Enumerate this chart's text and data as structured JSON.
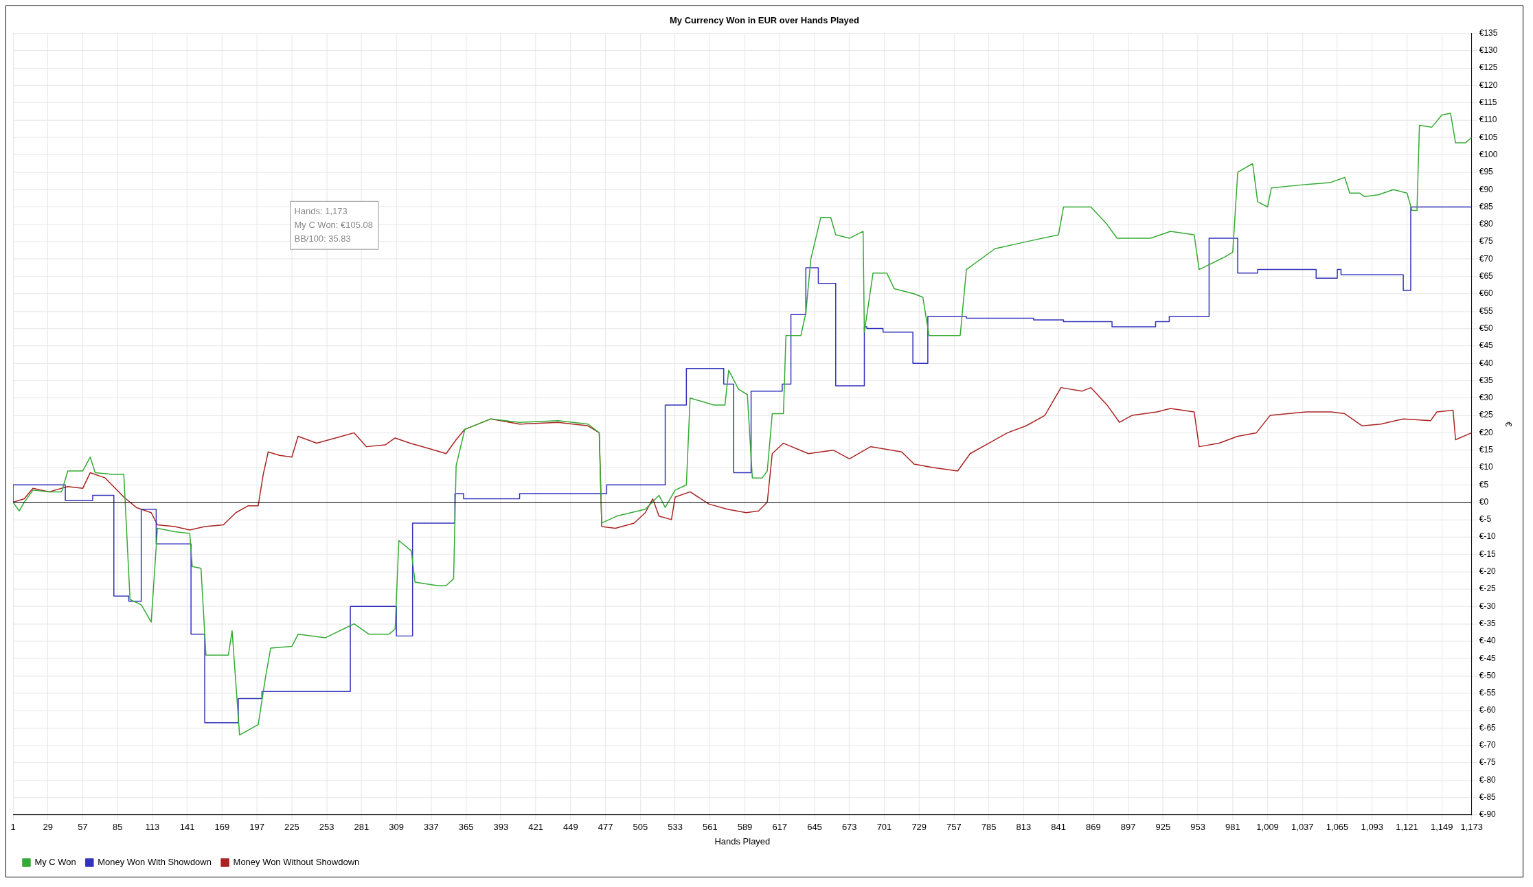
{
  "chart_data": {
    "type": "line",
    "title": "My Currency Won in EUR over Hands Played",
    "xlabel": "Hands Played",
    "ylabel": "€",
    "xlim": [
      1,
      1173
    ],
    "xticks": [
      1,
      29,
      57,
      85,
      113,
      141,
      169,
      197,
      225,
      253,
      281,
      309,
      337,
      365,
      393,
      421,
      449,
      477,
      505,
      533,
      561,
      589,
      617,
      645,
      673,
      701,
      729,
      757,
      785,
      813,
      841,
      869,
      897,
      925,
      953,
      981,
      {
        "value": 1009,
        "label": "1,009"
      },
      {
        "value": 1037,
        "label": "1,037"
      },
      {
        "value": 1065,
        "label": "1,065"
      },
      {
        "value": 1093,
        "label": "1,093"
      },
      {
        "value": 1121,
        "label": "1,121"
      },
      {
        "value": 1149,
        "label": "1,149"
      },
      {
        "value": 1173,
        "label": "1,173"
      }
    ],
    "ylim": [
      -90,
      135
    ],
    "yticks": [
      {
        "value": -90,
        "label": "€-90"
      },
      {
        "value": -85,
        "label": "€-85"
      },
      {
        "value": -80,
        "label": "€-80"
      },
      {
        "value": -75,
        "label": "€-75"
      },
      {
        "value": -70,
        "label": "€-70"
      },
      {
        "value": -65,
        "label": "€-65"
      },
      {
        "value": -60,
        "label": "€-60"
      },
      {
        "value": -55,
        "label": "€-55"
      },
      {
        "value": -50,
        "label": "€-50"
      },
      {
        "value": -45,
        "label": "€-45"
      },
      {
        "value": -40,
        "label": "€-40"
      },
      {
        "value": -35,
        "label": "€-35"
      },
      {
        "value": -30,
        "label": "€-30"
      },
      {
        "value": -25,
        "label": "€-25"
      },
      {
        "value": -20,
        "label": "€-20"
      },
      {
        "value": -15,
        "label": "€-15"
      },
      {
        "value": -10,
        "label": "€-10"
      },
      {
        "value": -5,
        "label": "€-5"
      },
      {
        "value": 0,
        "label": "€0"
      },
      {
        "value": 5,
        "label": "€5"
      },
      {
        "value": 10,
        "label": "€10"
      },
      {
        "value": 15,
        "label": "€15"
      },
      {
        "value": 20,
        "label": "€20"
      },
      {
        "value": 25,
        "label": "€25"
      },
      {
        "value": 30,
        "label": "€30"
      },
      {
        "value": 35,
        "label": "€35"
      },
      {
        "value": 40,
        "label": "€40"
      },
      {
        "value": 45,
        "label": "€45"
      },
      {
        "value": 50,
        "label": "€50"
      },
      {
        "value": 55,
        "label": "€55"
      },
      {
        "value": 60,
        "label": "€60"
      },
      {
        "value": 65,
        "label": "€65"
      },
      {
        "value": 70,
        "label": "€70"
      },
      {
        "value": 75,
        "label": "€75"
      },
      {
        "value": 80,
        "label": "€80"
      },
      {
        "value": 85,
        "label": "€85"
      },
      {
        "value": 90,
        "label": "€90"
      },
      {
        "value": 95,
        "label": "€95"
      },
      {
        "value": 100,
        "label": "€100"
      },
      {
        "value": 105,
        "label": "€105"
      },
      {
        "value": 110,
        "label": "€110"
      },
      {
        "value": 115,
        "label": "€115"
      },
      {
        "value": 120,
        "label": "€120"
      },
      {
        "value": 125,
        "label": "€125"
      },
      {
        "value": 130,
        "label": "€130"
      },
      {
        "value": 135,
        "label": "€135"
      }
    ],
    "grid": true,
    "legend": "bottom left",
    "marker": "none",
    "line_style": "solid",
    "ref_lines": [
      {
        "axis": "y",
        "value": 0,
        "color": "#000000"
      }
    ],
    "annotations": [
      "Hands: 1,173",
      "My C Won: €105.08",
      "BB/100: 35.83"
    ],
    "series": [
      {
        "name": "My C Won",
        "type": "line",
        "color": "#33aa33",
        "x": [
          1,
          6,
          10,
          17,
          30,
          40,
          45,
          57,
          63,
          67,
          81,
          90,
          95,
          104,
          112,
          117,
          131,
          143,
          145,
          152,
          156,
          174,
          177,
          183,
          198,
          204,
          208,
          225,
          230,
          252,
          275,
          287,
          303,
          308,
          311,
          321,
          324,
          342,
          349,
          355,
          357,
          364,
          385,
          408,
          439,
          463,
          472,
          474,
          486,
          509,
          520,
          525,
          533,
          542,
          545,
          564,
          573,
          576,
          584,
          591,
          595,
          603,
          607,
          611,
          620,
          622,
          634,
          638,
          642,
          650,
          658,
          662,
          673,
          684,
          685,
          692,
          703,
          709,
          725,
          732,
          737,
          752,
          762,
          767,
          790,
          815,
          841,
          845,
          867,
          880,
          888,
          915,
          931,
          950,
          954,
          974,
          981,
          985,
          997,
          1001,
          1009,
          1012,
          1040,
          1059,
          1071,
          1075,
          1083,
          1087,
          1098,
          1110,
          1121,
          1125,
          1129,
          1131,
          1141,
          1149,
          1156,
          1160,
          1168,
          1173
        ],
        "values": [
          0,
          -2.5,
          0,
          3.5,
          3,
          3,
          9,
          9,
          13,
          8.5,
          8,
          8,
          -28,
          -29.5,
          -34.5,
          -7.5,
          -8.5,
          -9,
          -18.5,
          -19,
          -44,
          -44,
          -37,
          -67,
          -64,
          -50,
          -42,
          -41.5,
          -38,
          -39,
          -35,
          -38,
          -38,
          -36.5,
          -11,
          -14,
          -23,
          -24,
          -24,
          -22,
          10.5,
          21,
          24,
          23,
          23.5,
          22.5,
          20,
          -6,
          -4,
          -2,
          2,
          -1.5,
          3.5,
          5,
          30,
          28,
          28,
          38,
          32.5,
          31,
          7,
          7,
          9,
          25.5,
          25.5,
          48,
          48,
          54.5,
          70,
          82,
          82,
          77,
          76,
          78,
          49,
          66,
          66,
          61.5,
          60,
          59,
          48,
          48,
          48,
          67,
          73,
          75,
          77,
          85,
          85,
          80,
          76,
          76,
          78,
          77,
          67,
          70.5,
          72,
          95,
          97.5,
          86.5,
          85,
          90.5,
          91.5,
          92,
          93.5,
          89,
          89,
          88,
          88.5,
          90,
          89,
          84,
          84,
          108.5,
          108,
          111.5,
          112,
          103.5,
          103.5,
          105
        ]
      },
      {
        "name": "Money Won With Showdown",
        "type": "step",
        "color": "#3333bb",
        "x": [
          1,
          43,
          65,
          82,
          94,
          104,
          116,
          144,
          155,
          182,
          201,
          272,
          309,
          322,
          356,
          363,
          408,
          478,
          525,
          542,
          572,
          580,
          594,
          619,
          626,
          638,
          648,
          662,
          685,
          687,
          700,
          724,
          736,
          767,
          821,
          845,
          884,
          919,
          930,
          962,
          985,
          1001,
          1048,
          1065,
          1068,
          1118,
          1124,
          1131,
          1173
        ],
        "values": [
          0,
          5,
          0.5,
          2,
          -27,
          -28.5,
          -2,
          -12,
          -38,
          -63.5,
          -56.5,
          -54.5,
          -30,
          -38.5,
          -6,
          2.5,
          1,
          2.5,
          5,
          28,
          38.5,
          34,
          8.5,
          32,
          34,
          54,
          67.5,
          63,
          33.5,
          50.5,
          50,
          49,
          40,
          53.5,
          53,
          52.5,
          52,
          50.5,
          52,
          53.5,
          76,
          66,
          67,
          64.5,
          67,
          65.5,
          61,
          85,
          85
        ]
      },
      {
        "name": "Money Won Without Showdown",
        "type": "line",
        "color": "#aa2222",
        "x": [
          1,
          10,
          17,
          30,
          45,
          57,
          63,
          75,
          90,
          100,
          112,
          117,
          131,
          143,
          155,
          170,
          180,
          190,
          198,
          202,
          206,
          215,
          225,
          230,
          245,
          260,
          275,
          285,
          300,
          308,
          320,
          335,
          349,
          357,
          364,
          385,
          408,
          439,
          463,
          472,
          474,
          485,
          500,
          509,
          515,
          520,
          530,
          533,
          545,
          560,
          575,
          590,
          600,
          607,
          611,
          620,
          640,
          660,
          673,
          690,
          715,
          725,
          740,
          760,
          770,
          785,
          800,
          815,
          830,
          843,
          860,
          867,
          880,
          890,
          900,
          920,
          931,
          950,
          954,
          970,
          985,
          1000,
          1011,
          1040,
          1060,
          1071,
          1085,
          1100,
          1118,
          1140,
          1145,
          1158,
          1160,
          1173
        ],
        "values": [
          0,
          1,
          4,
          3,
          4.5,
          4,
          8.5,
          7,
          1.5,
          -1.5,
          -3,
          -6.5,
          -7,
          -8,
          -7,
          -6.5,
          -3,
          -1,
          -1,
          8,
          14.5,
          13.5,
          13,
          19,
          17,
          18.5,
          20,
          16,
          16.5,
          18.5,
          17,
          15.5,
          14,
          18,
          21,
          24,
          22.5,
          23,
          22,
          20,
          -7,
          -7.5,
          -6,
          -3,
          1,
          -4,
          -5,
          1.5,
          3,
          -0.5,
          -2,
          -3,
          -2.5,
          0,
          14,
          17,
          14,
          15,
          12.5,
          16,
          14.5,
          11,
          10,
          9,
          14,
          17,
          20,
          22,
          25,
          33,
          32,
          33,
          28,
          23,
          25,
          26,
          27,
          26,
          16,
          17,
          19,
          20,
          25,
          26,
          26,
          25.5,
          22,
          22.5,
          24,
          23.5,
          26,
          26.5,
          18,
          20
        ]
      }
    ]
  }
}
